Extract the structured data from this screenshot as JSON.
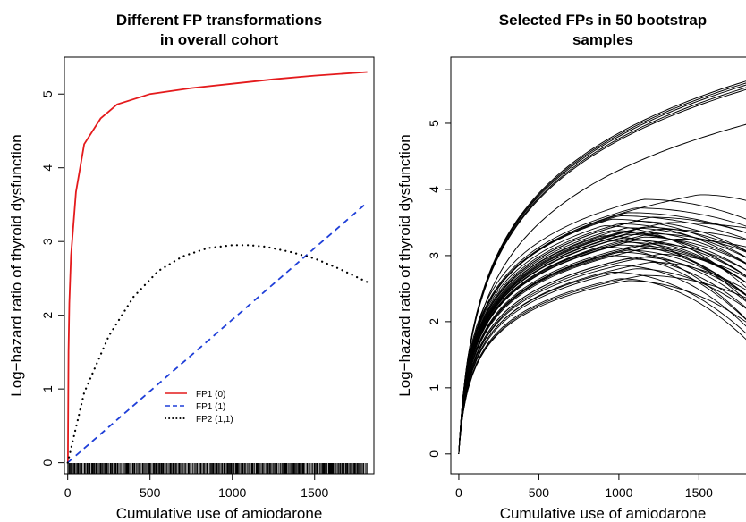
{
  "chart_data": [
    {
      "type": "line",
      "title": [
        "Different FP transformations",
        "in overall cohort"
      ],
      "xlabel": "Cumulative use of amiodarone",
      "ylabel": "Log−hazard ratio of thyroid dysfunction",
      "xlim": [
        -20,
        1860
      ],
      "ylim": [
        -0.15,
        5.5
      ],
      "xticks": [
        0,
        500,
        1000,
        1500
      ],
      "yticks": [
        0,
        1,
        2,
        3,
        4,
        5
      ],
      "rug": true,
      "legend": {
        "placement": "bottom-center"
      },
      "series": [
        {
          "name": "FP1 (0)",
          "color": "#e41a1c",
          "style": "solid",
          "x": [
            1,
            5,
            10,
            20,
            50,
            100,
            200,
            300,
            500,
            750,
            1000,
            1250,
            1500,
            1820
          ],
          "y": [
            0.0,
            1.51,
            2.16,
            2.81,
            3.67,
            4.32,
            4.67,
            4.86,
            5.0,
            5.08,
            5.14,
            5.2,
            5.25,
            5.3
          ]
        },
        {
          "name": "FP1 (1)",
          "color": "#1f3fd8",
          "style": "dashed",
          "x": [
            0,
            500,
            1000,
            1500,
            1820
          ],
          "y": [
            0.0,
            0.97,
            1.94,
            2.91,
            3.53
          ]
        },
        {
          "name": "FP2 (1,1)",
          "color": "#000000",
          "style": "dotted",
          "x": [
            0,
            100,
            250,
            400,
            550,
            700,
            850,
            1000,
            1100,
            1200,
            1350,
            1500,
            1650,
            1820
          ],
          "y": [
            0.0,
            0.95,
            1.72,
            2.25,
            2.6,
            2.8,
            2.91,
            2.95,
            2.95,
            2.93,
            2.86,
            2.77,
            2.63,
            2.45
          ]
        }
      ]
    },
    {
      "type": "line",
      "title": [
        "Selected FPs in 50 bootstrap",
        "samples"
      ],
      "xlabel": "Cumulative use of amiodarone",
      "ylabel": "Log−hazard ratio of thyroid dysfunction",
      "xlim": [
        -50,
        1850
      ],
      "ylim": [
        -0.3,
        6.0
      ],
      "xticks": [
        0,
        500,
        1000,
        1500
      ],
      "yticks": [
        0,
        1,
        2,
        3,
        4,
        5
      ],
      "bootstrap_curves": {
        "count": 50,
        "color": "#000000",
        "log_shape_endpoints_at_1850": [
          5.68,
          5.65,
          5.62,
          5.58,
          5.55,
          5.02
        ],
        "peak_levels": [
          3.92,
          3.85,
          3.72,
          3.65,
          3.6,
          3.58,
          3.55,
          3.52,
          3.5,
          3.48,
          3.45,
          3.43,
          3.42,
          3.4,
          3.38,
          3.36,
          3.35,
          3.33,
          3.32,
          3.3,
          3.28,
          3.26,
          3.25,
          3.23,
          3.22,
          3.2,
          3.18,
          3.16,
          3.15,
          3.13,
          3.1,
          3.08,
          3.05,
          3.02,
          3.0,
          2.98,
          2.95,
          2.9,
          2.85,
          2.8,
          2.75,
          2.7,
          2.65,
          2.62
        ],
        "peak_x_values": [
          1500,
          1150,
          1100,
          1050,
          1000,
          1200,
          950,
          1100,
          1300,
          1000,
          900,
          1150,
          1050,
          1250,
          950,
          1100,
          1000,
          1200,
          1050,
          900,
          1150,
          1000,
          1350,
          1100,
          950,
          1050,
          1200,
          1000,
          1100,
          900,
          1150,
          1050,
          1000,
          1250,
          950,
          1100,
          1050,
          1200,
          1000,
          1100,
          950,
          1150,
          1000,
          1050
        ],
        "end_values_at_1850": [
          3.8,
          3.5,
          3.4,
          3.3,
          3.2,
          3.3,
          2.9,
          3.0,
          3.4,
          2.8,
          2.4,
          3.0,
          2.9,
          3.2,
          2.6,
          2.8,
          2.6,
          3.0,
          2.7,
          2.2,
          2.8,
          2.5,
          3.1,
          2.6,
          2.3,
          2.5,
          2.7,
          2.3,
          2.5,
          1.9,
          2.5,
          2.3,
          2.2,
          2.6,
          1.9,
          2.3,
          2.1,
          2.4,
          1.8,
          2.1,
          1.7,
          2.3,
          1.6,
          1.9
        ]
      }
    }
  ]
}
